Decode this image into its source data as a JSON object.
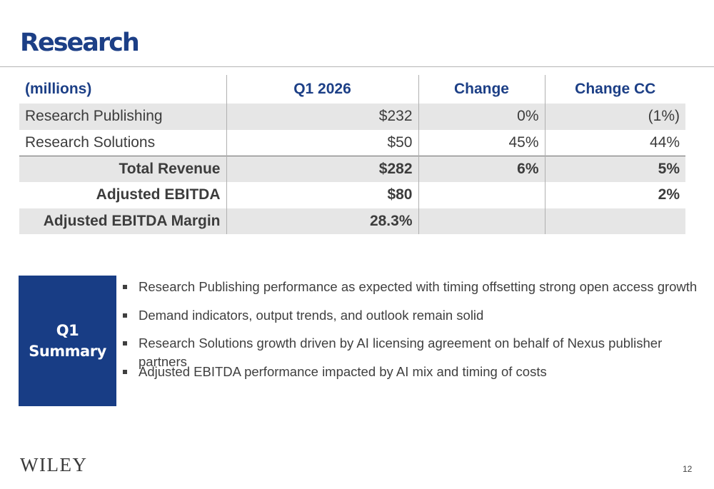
{
  "page": {
    "title": "Research",
    "page_number": "12"
  },
  "table": {
    "headers": [
      "(millions)",
      "Q1 2026",
      "Change",
      "Change CC"
    ],
    "rows": [
      [
        "Research Publishing",
        "$232",
        "0%",
        "(1%)"
      ],
      [
        "Research Solutions",
        "$50",
        "45%",
        "44%"
      ],
      [
        "Total Revenue",
        "$282",
        "6%",
        "5%"
      ],
      [
        "Adjusted EBITDA",
        "$80",
        "",
        "2%"
      ],
      [
        "Adjusted EBITDA Margin",
        "28.3%",
        "",
        ""
      ]
    ]
  },
  "summary": {
    "label_line1": "Q1",
    "label_line2": "Summary",
    "bullets": [
      "Research Publishing performance as expected with timing offsetting strong open access growth",
      "Demand indicators, output trends, and outlook remain solid",
      "Research Solutions growth driven by AI licensing agreement on behalf of Nexus publisher partners",
      "Adjusted EBITDA performance impacted by AI mix and timing of costs"
    ]
  },
  "footer": {
    "logo_text": "WILEY"
  },
  "colors": {
    "brand_blue": "#1c3f86",
    "row_shade": "#e6e6e6",
    "summary_box": "#183d85"
  }
}
